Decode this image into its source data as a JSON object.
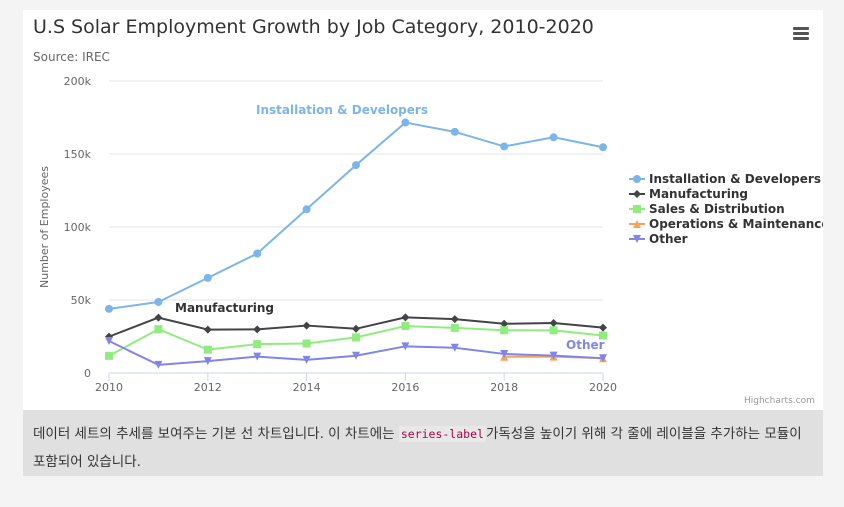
{
  "chart_data": {
    "type": "line",
    "title": "U.S Solar Employment Growth by Job Category, 2010-2020",
    "subtitle": "Source: IREC",
    "ylabel": "Number of Employees",
    "xlabel": "",
    "xlim": [
      2010,
      2020
    ],
    "ylim": [
      0,
      200000
    ],
    "x_ticks": [
      "2010",
      "2012",
      "2014",
      "2016",
      "2018",
      "2020"
    ],
    "y_ticks": [
      "0",
      "50k",
      "100k",
      "150k",
      "200k"
    ],
    "grid": "horizontal",
    "legend_position": "right",
    "x": [
      2010,
      2011,
      2012,
      2013,
      2014,
      2015,
      2016,
      2017,
      2018,
      2019,
      2020
    ],
    "series": [
      {
        "name": "Installation & Developers",
        "color": "#7cb5ec",
        "marker": "circle",
        "values": [
          43934,
          48656,
          65165,
          81827,
          112143,
          142383,
          171533,
          165174,
          155157,
          161454,
          154610
        ],
        "series_label": "Installation & Developers"
      },
      {
        "name": "Manufacturing",
        "color": "#434348",
        "marker": "diamond",
        "values": [
          24916,
          37941,
          29742,
          29851,
          32490,
          30282,
          38121,
          36885,
          33726,
          34243,
          31050
        ],
        "series_label": "Manufacturing"
      },
      {
        "name": "Sales & Distribution",
        "color": "#90ed7d",
        "marker": "square",
        "values": [
          11744,
          30000,
          16005,
          19771,
          20185,
          24377,
          32147,
          30912,
          29243,
          29213,
          25663
        ],
        "series_label": ""
      },
      {
        "name": "Operations & Maintenance",
        "color": "#f7a35c",
        "marker": "triangle",
        "values": [
          null,
          null,
          null,
          null,
          null,
          null,
          null,
          null,
          11164,
          11218,
          10077
        ],
        "series_label": ""
      },
      {
        "name": "Other",
        "color": "#8085e9",
        "marker": "triangle-down",
        "values": [
          21908,
          5548,
          8105,
          11248,
          8989,
          11816,
          18274,
          17300,
          13053,
          11906,
          10073
        ],
        "series_label": "Other"
      }
    ]
  },
  "credits": "Highcharts.com",
  "caption": {
    "before": "데이터 세트의 추세를 보여주는 기본 선 차트입니다. 이 차트에는 ",
    "code": "series-label",
    "after": "가독성을 높이기 위해 각 줄에 레이블을 추가하는 모듈이 포함되어 있습니다."
  }
}
